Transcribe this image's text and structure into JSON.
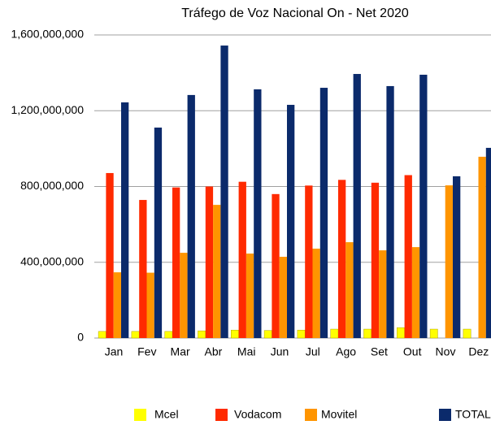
{
  "chart_data": {
    "type": "bar",
    "title": "Tráfego de Voz Nacional On - Net 2020",
    "categories": [
      "Jan",
      "Fev",
      "Mar",
      "Abr",
      "Mai",
      "Jun",
      "Jul",
      "Ago",
      "Set",
      "Out",
      "Nov",
      "Dez"
    ],
    "series": [
      {
        "name": "Mcel",
        "color": "#ffff00",
        "values": [
          35000000,
          35000000,
          35000000,
          38000000,
          42000000,
          40000000,
          42000000,
          47000000,
          47000000,
          55000000,
          47000000,
          47000000
        ]
      },
      {
        "name": "Vodacom",
        "color": "#ff2a00",
        "values": [
          871000000,
          729000000,
          795000000,
          800000000,
          825000000,
          760000000,
          805000000,
          835000000,
          820000000,
          860000000,
          null,
          null
        ]
      },
      {
        "name": "Movitel",
        "color": "#ff9500",
        "values": [
          347000000,
          345000000,
          450000000,
          703000000,
          446000000,
          429000000,
          472000000,
          506000000,
          463000000,
          480000000,
          806000000,
          957000000
        ]
      },
      {
        "name": "TOTAL",
        "color": "#0b2a6b",
        "values": [
          1244000000,
          1111000000,
          1283000000,
          1544000000,
          1313000000,
          1231000000,
          1321000000,
          1394000000,
          1330000000,
          1390000000,
          854000000,
          1004000000
        ]
      }
    ],
    "ylim": [
      0,
      1600000000
    ],
    "yticks": [
      0,
      {
        "value": 400000000,
        "label": "400,000,000"
      },
      {
        "value": 800000000,
        "label": "800,000,000"
      },
      {
        "value": 1200000000,
        "label": "1,200,000,000"
      },
      {
        "value": 1600000000,
        "label": "1,600,000,000"
      }
    ],
    "grid": true
  }
}
